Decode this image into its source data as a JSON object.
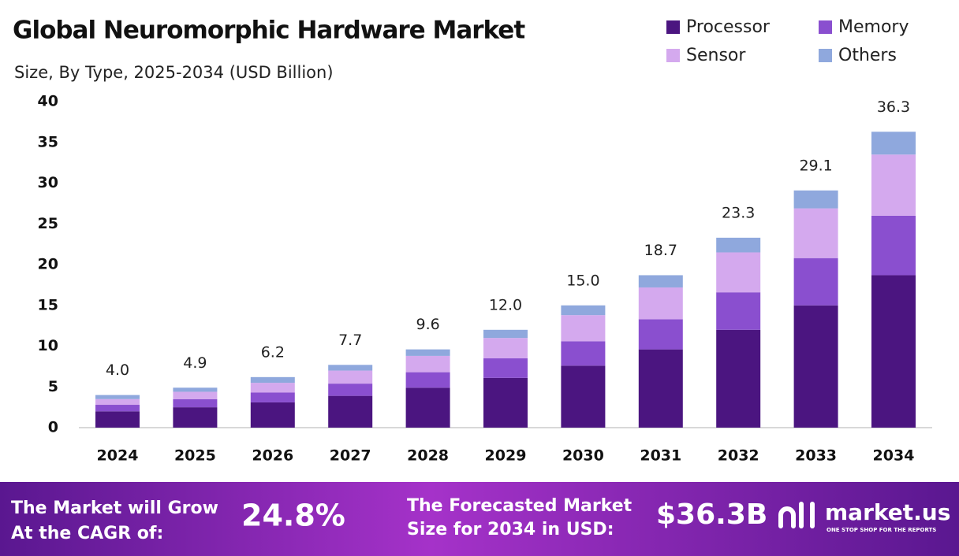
{
  "chart_data": {
    "type": "stacked_bar",
    "title": "Global Neuromorphic Hardware Market",
    "subtitle": "Size, By Type, 2025-2034 (USD Billion)",
    "categories": [
      "2024",
      "2025",
      "2026",
      "2027",
      "2028",
      "2029",
      "2030",
      "2031",
      "2032",
      "2033",
      "2034"
    ],
    "series": [
      {
        "name": "Processor",
        "color": "#4b1580",
        "values": [
          2.0,
          2.5,
          3.1,
          3.9,
          4.9,
          6.1,
          7.6,
          9.6,
          12.0,
          15.0,
          18.7
        ]
      },
      {
        "name": "Memory",
        "color": "#8a4fcf",
        "values": [
          0.8,
          1.0,
          1.2,
          1.5,
          1.9,
          2.4,
          3.0,
          3.7,
          4.6,
          5.8,
          7.3
        ]
      },
      {
        "name": "Sensor",
        "color": "#d4a9ee",
        "values": [
          0.7,
          0.9,
          1.2,
          1.6,
          2.0,
          2.5,
          3.2,
          3.9,
          4.9,
          6.1,
          7.5
        ]
      },
      {
        "name": "Others",
        "color": "#8fa8dd",
        "values": [
          0.5,
          0.5,
          0.7,
          0.7,
          0.8,
          1.0,
          1.2,
          1.5,
          1.8,
          2.2,
          2.8
        ]
      }
    ],
    "totals": [
      4.0,
      4.9,
      6.2,
      7.7,
      9.6,
      12.0,
      15.0,
      18.7,
      23.3,
      29.1,
      36.3
    ],
    "total_labels": [
      "4.0",
      "4.9",
      "6.2",
      "7.7",
      "9.6",
      "12.0",
      "15.0",
      "18.7",
      "23.3",
      "29.1",
      "36.3"
    ],
    "ylim": [
      0,
      40
    ],
    "yticks": [
      0,
      5,
      10,
      15,
      20,
      25,
      30,
      35,
      40
    ],
    "grid": false,
    "legend": "top-right"
  },
  "footer": {
    "cagr_text": [
      "The Market will Grow",
      "At the CAGR of:"
    ],
    "cagr_value": "24.8%",
    "forecast_text": [
      "The Forecasted Market",
      "Size for 2034 in USD:"
    ],
    "forecast_value": "$36.3B",
    "brand": "market.us",
    "tagline": "ONE STOP SHOP FOR THE REPORTS"
  }
}
